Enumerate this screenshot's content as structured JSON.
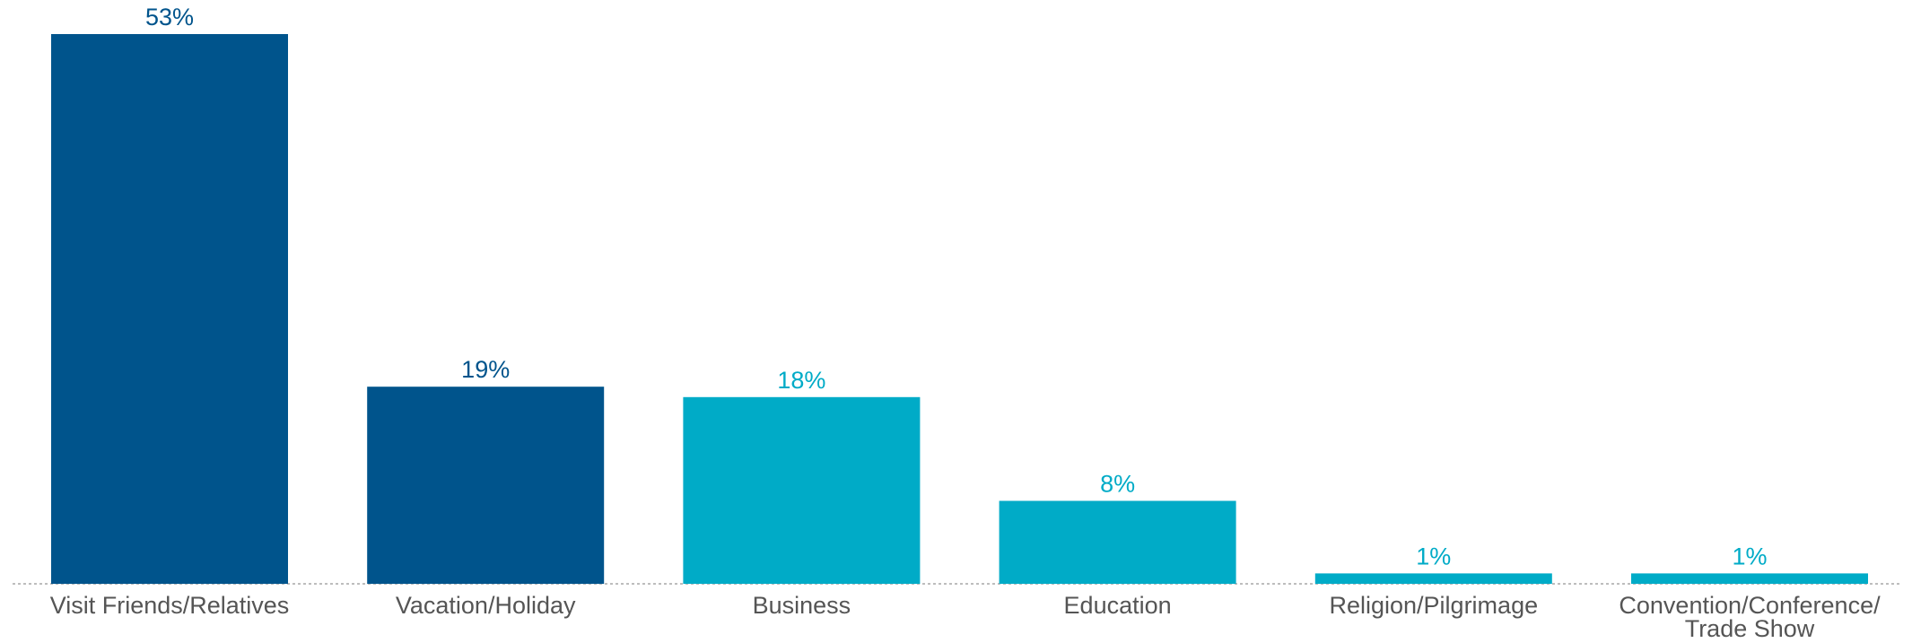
{
  "colors": {
    "dark_blue": "#00548C",
    "light_blue": "#00ABC7",
    "axis": "#BDBDBD",
    "category_text": "#555555"
  },
  "chart_data": {
    "type": "bar",
    "title": "",
    "xlabel": "",
    "ylabel": "",
    "ylim": [
      0,
      53
    ],
    "grid": false,
    "legend": "none",
    "value_suffix": "%",
    "categories": [
      [
        "Visit Friends/Relatives"
      ],
      [
        "Vacation/Holiday"
      ],
      [
        "Business"
      ],
      [
        "Education"
      ],
      [
        "Religion/Pilgrimage"
      ],
      [
        "Convention/Conference/",
        "Trade Show"
      ]
    ],
    "values": [
      53,
      19,
      18,
      8,
      1,
      1
    ],
    "bar_colors": [
      "#00548C",
      "#00548C",
      "#00ABC7",
      "#00ABC7",
      "#00ABC7",
      "#00ABC7"
    ]
  }
}
